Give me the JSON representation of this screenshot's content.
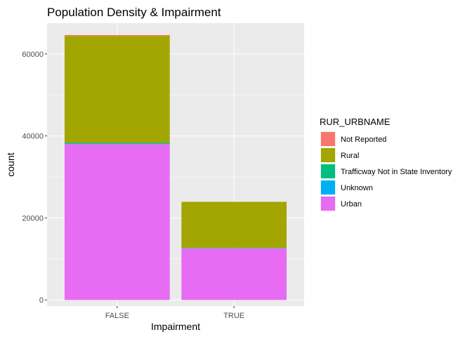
{
  "chart_data": {
    "type": "bar",
    "stacked": true,
    "title": "Population Density & Impairment",
    "xlabel": "Impairment",
    "ylabel": "count",
    "categories": [
      "FALSE",
      "TRUE"
    ],
    "ylim": [
      -1500,
      67500
    ],
    "yticks": [
      0,
      20000,
      40000,
      60000
    ],
    "ytick_labels": [
      "0",
      "20000",
      "40000",
      "60000"
    ],
    "grid": true,
    "legend": {
      "title": "RUR_URBNAME",
      "position": "right"
    },
    "series": [
      {
        "name": "Urban",
        "color": "#E76BF3",
        "values": [
          38000,
          12600
        ]
      },
      {
        "name": "Unknown",
        "color": "#00B0F6",
        "values": [
          150,
          60
        ]
      },
      {
        "name": "Trafficway Not in State Inventory",
        "color": "#00BF7D",
        "values": [
          150,
          60
        ]
      },
      {
        "name": "Rural",
        "color": "#A3A500",
        "values": [
          26100,
          11200
        ]
      },
      {
        "name": "Not Reported",
        "color": "#F8766D",
        "values": [
          200,
          20
        ]
      }
    ],
    "legend_order": [
      "Not Reported",
      "Rural",
      "Trafficway Not in State Inventory",
      "Unknown",
      "Urban"
    ]
  }
}
